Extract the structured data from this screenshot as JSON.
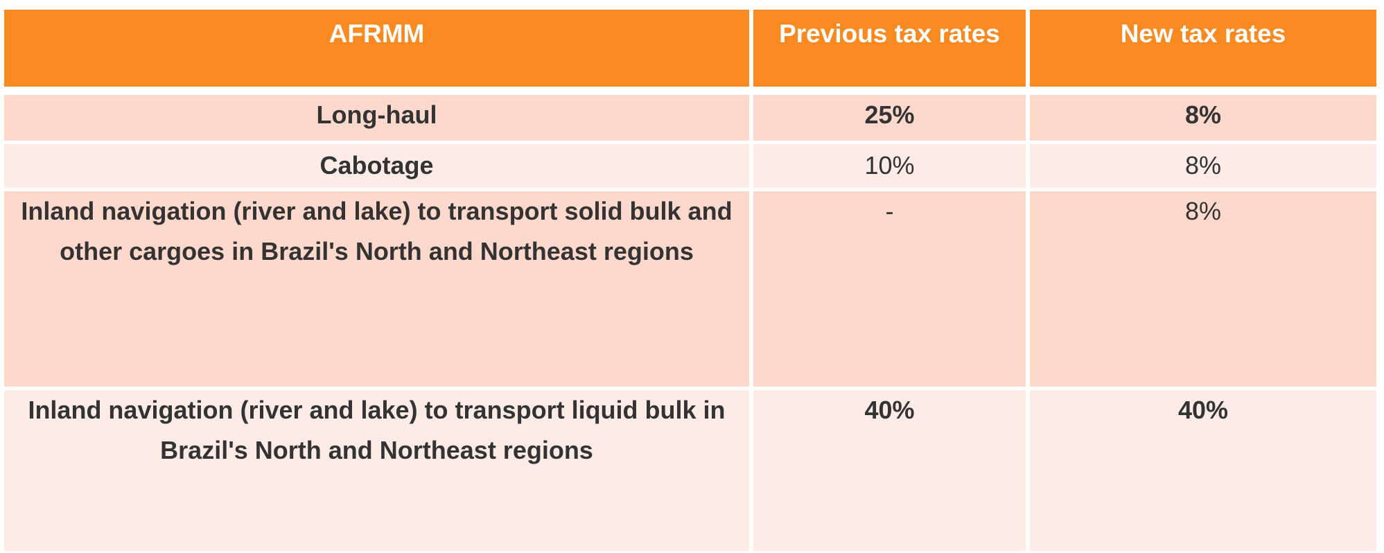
{
  "table": {
    "headers": [
      "AFRMM",
      "Previous tax rates",
      "New tax rates"
    ],
    "rows": [
      {
        "category": "Long-haul",
        "previous": "25%",
        "new": "8%"
      },
      {
        "category": "Cabotage",
        "previous": "10%",
        "new": "8%"
      },
      {
        "category": "Inland navigation (river and lake) to transport solid bulk and other cargoes in Brazil's North and Northeast regions",
        "previous": "-",
        "new": "8%"
      },
      {
        "category": "Inland navigation (river and lake) to transport liquid bulk in Brazil's North and Northeast regions",
        "previous": "40%",
        "new": "40%"
      }
    ]
  },
  "colors": {
    "header": "#f98a21",
    "row_dark": "#fdd9cd",
    "row_light": "#fdebe5"
  }
}
